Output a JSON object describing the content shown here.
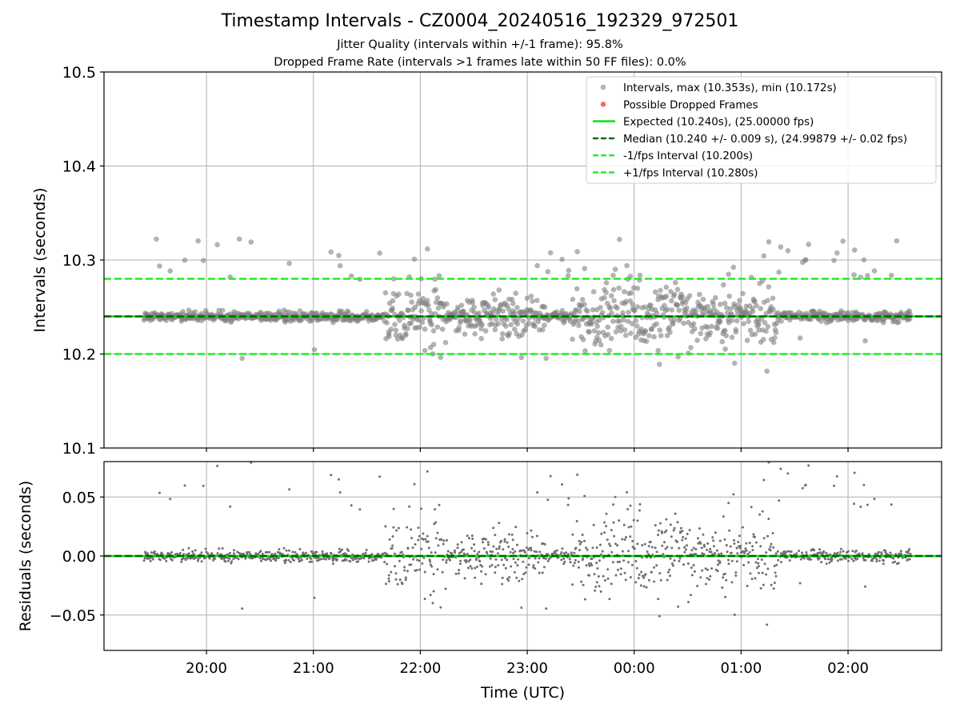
{
  "figure": {
    "title": "Timestamp Intervals - CZ0004_20240516_192329_972501",
    "subtitle_1": "Jitter Quality (intervals within +/-1 frame): 95.8%",
    "subtitle_2": "Dropped Frame Rate (intervals >1 frames late within 50 FF files): 0.0%"
  },
  "colors": {
    "points": "#808080",
    "dropped": "#ff4d4d",
    "expected": "#00dd00",
    "median": "#006400",
    "interval_band": "#22ee22",
    "residual_points": "#707070",
    "grid": "#b0b0b0"
  },
  "chart_data": [
    {
      "type": "scatter",
      "ylabel": "Intervals (seconds)",
      "ylim": [
        10.1,
        10.5
      ],
      "y_ticks": [
        "10.1",
        "10.2",
        "10.3",
        "10.4",
        "10.5"
      ],
      "x_ticks": [
        "20:00",
        "21:00",
        "22:00",
        "23:00",
        "00:00",
        "01:00",
        "02:00"
      ],
      "x_start": "19:25",
      "x_end": "02:35",
      "grid": true,
      "legend_position": "top-right",
      "legend": [
        "Intervals, max (10.353s), min (10.172s)",
        "Possible Dropped Frames",
        "Expected (10.240s), (25.00000 fps)",
        "Median (10.240 +/- 0.009 s), (24.99879 +/- 0.02 fps)",
        "-1/fps Interval (10.200s)",
        "+1/fps Interval (10.280s)"
      ],
      "series": [
        {
          "name": "Intervals, max (10.353s), min (10.172s)",
          "max": 10.353,
          "min": 10.172,
          "median": 10.24
        },
        {
          "name": "Possible Dropped Frames",
          "count": 0
        }
      ],
      "hlines": [
        {
          "name": "Expected (10.240s), (25.00000 fps)",
          "y": 10.24,
          "style": "solid"
        },
        {
          "name": "Median (10.240 +/- 0.009 s), (24.99879 +/- 0.02 fps)",
          "y": 10.24,
          "style": "dashed"
        },
        {
          "name": "-1/fps Interval (10.200s)",
          "y": 10.2,
          "style": "dashed"
        },
        {
          "name": "+1/fps Interval (10.280s)",
          "y": 10.28,
          "style": "dashed"
        }
      ]
    },
    {
      "type": "scatter",
      "xlabel": "Time (UTC)",
      "ylabel": "Residuals (seconds)",
      "ylim": [
        -0.08,
        0.08
      ],
      "y_ticks": [
        "−0.05",
        "0.00",
        "0.05"
      ],
      "x_ticks": [
        "20:00",
        "21:00",
        "22:00",
        "23:00",
        "00:00",
        "01:00",
        "02:00"
      ],
      "grid": true,
      "hlines": [
        {
          "y": 0.0,
          "style": "solid"
        },
        {
          "y": 0.0,
          "style": "dashed"
        }
      ]
    }
  ]
}
